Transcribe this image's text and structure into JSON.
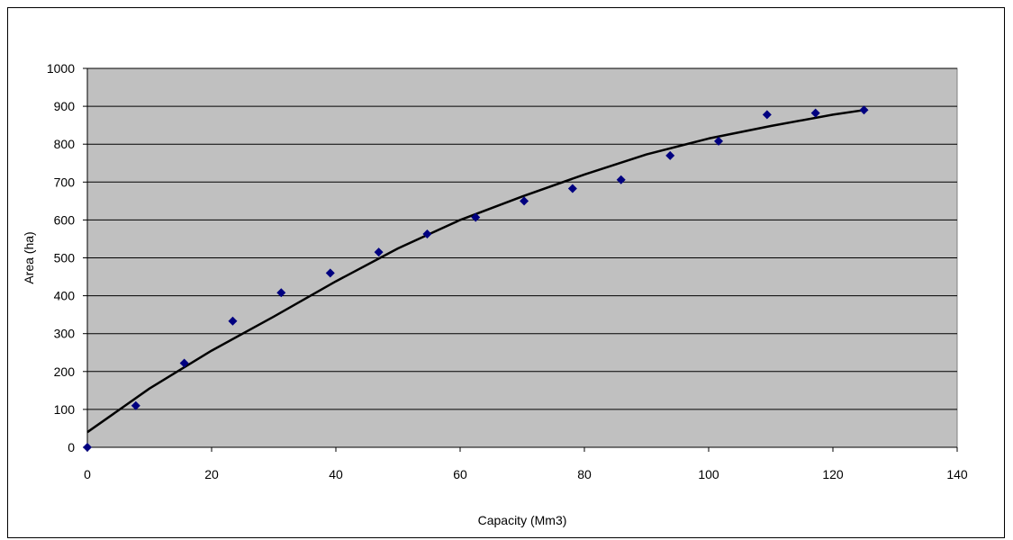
{
  "chart_data": {
    "type": "scatter",
    "title": "",
    "xlabel": "Capacity (Mm3)",
    "ylabel": "Area (ha)",
    "xlim": [
      0,
      140
    ],
    "ylim": [
      0,
      1000
    ],
    "x_ticks": [
      0,
      20,
      40,
      60,
      80,
      100,
      120,
      140
    ],
    "y_ticks": [
      0,
      100,
      200,
      300,
      400,
      500,
      600,
      700,
      800,
      900,
      1000
    ],
    "grid": "horizontal",
    "legend": "none",
    "plot_background": "#c0c0c0",
    "series": [
      {
        "kind": "points",
        "marker": "diamond",
        "color": "#000080",
        "x": [
          0,
          7.8,
          15.6,
          23.4,
          31.2,
          39.1,
          46.9,
          54.7,
          62.5,
          70.3,
          78.1,
          85.9,
          93.8,
          101.6,
          109.4,
          117.2,
          125.0
        ],
        "y": [
          0,
          110,
          222,
          333,
          408,
          460,
          515,
          563,
          607,
          650,
          683,
          706,
          770,
          808,
          878,
          882,
          890
        ]
      },
      {
        "kind": "trendline",
        "color": "#000000",
        "x": [
          0,
          10,
          20,
          30,
          40,
          50,
          60,
          70,
          80,
          90,
          100,
          110,
          120,
          125
        ],
        "y": [
          40,
          155,
          255,
          345,
          438,
          525,
          600,
          662,
          720,
          773,
          815,
          848,
          878,
          890
        ]
      }
    ]
  }
}
